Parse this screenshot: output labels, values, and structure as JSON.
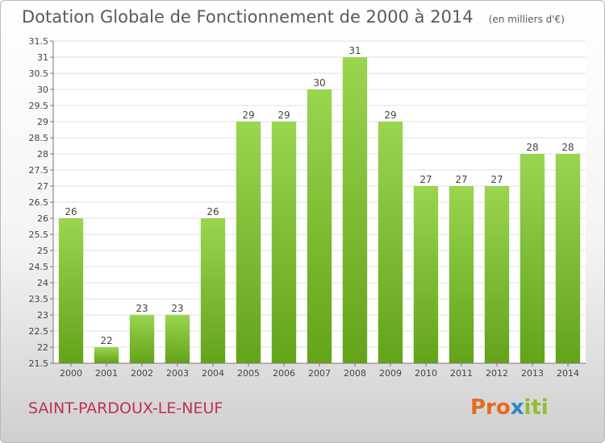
{
  "chart_data": {
    "type": "bar",
    "title": "Dotation Globale de Fonctionnement de 2000 à 2014",
    "unit": "(en milliers d'€)",
    "categories": [
      "2000",
      "2001",
      "2002",
      "2003",
      "2004",
      "2005",
      "2006",
      "2007",
      "2008",
      "2009",
      "2010",
      "2011",
      "2012",
      "2013",
      "2014"
    ],
    "values": [
      26,
      22,
      23,
      23,
      26,
      29,
      29,
      30,
      31,
      29,
      27,
      27,
      27,
      28,
      28
    ],
    "value_labels": [
      "26",
      "22",
      "23",
      "23",
      "26",
      "29",
      "29",
      "30",
      "31",
      "29",
      "27",
      "27",
      "27",
      "28",
      "28"
    ],
    "ylim": [
      21.5,
      31.5
    ],
    "yticks": [
      "21.5",
      "22",
      "22.5",
      "23",
      "23.5",
      "24",
      "24.5",
      "25",
      "25.5",
      "26",
      "26.5",
      "27",
      "27.5",
      "28",
      "28.5",
      "29",
      "29.5",
      "30",
      "30.5",
      "31",
      "31.5"
    ],
    "grid": true,
    "xlabel": "",
    "ylabel": ""
  },
  "footer": {
    "commune": "SAINT-PARDOUX-LE-NEUF",
    "logo_part1": "Pro",
    "logo_part2": "x",
    "logo_part3": "iti"
  },
  "colors": {
    "bar_top": "#9ad550",
    "bar_bottom": "#63a319",
    "grid": "#e2e2e2",
    "axis": "#777777",
    "text": "#444444"
  }
}
